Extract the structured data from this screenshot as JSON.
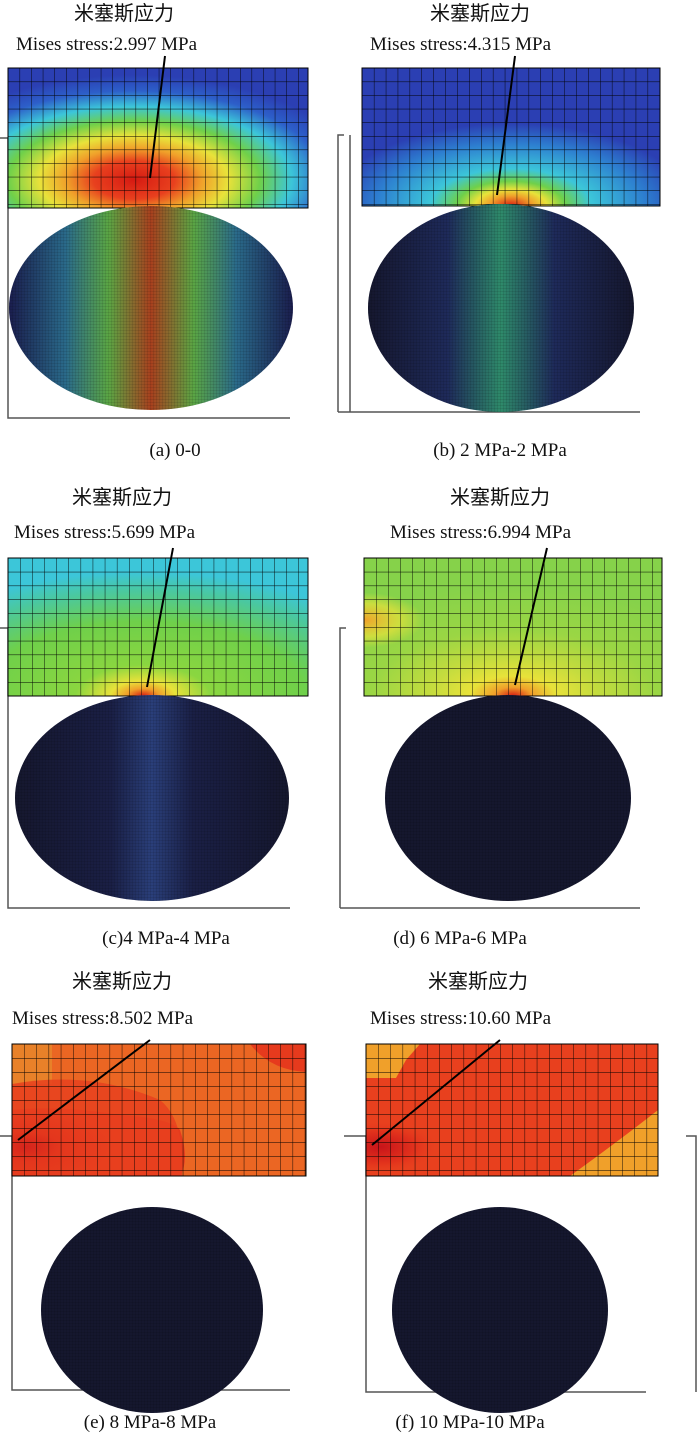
{
  "panels": [
    {
      "id": "a",
      "title_cn": "米塞斯应力",
      "title_en": "Mises stress:2.997 MPa",
      "caption": "(a) 0-0"
    },
    {
      "id": "b",
      "title_cn": "米塞斯应力",
      "title_en": "Mises stress:4.315 MPa",
      "caption": "(b) 2 MPa-2 MPa"
    },
    {
      "id": "c",
      "title_cn": "米塞斯应力",
      "title_en": "Mises stress:5.699 MPa",
      "caption": "(c)4 MPa-4 MPa"
    },
    {
      "id": "d",
      "title_cn": "米塞斯应力",
      "title_en": "Mises stress:6.994 MPa",
      "caption": "(d) 6 MPa-6 MPa"
    },
    {
      "id": "e",
      "title_cn": "米塞斯应力",
      "title_en": "Mises stress:8.502 MPa",
      "caption": "(e) 8 MPa-8 MPa"
    },
    {
      "id": "f",
      "title_cn": "米塞斯应力",
      "title_en": "Mises stress:10.60 MPa",
      "caption": "(f) 10 MPa-10 MPa"
    }
  ],
  "colors": {
    "contour_blue": "#2b3fb3",
    "contour_cyan": "#3cc6d9",
    "contour_green": "#5fcf4a",
    "contour_yellow": "#e8e23a",
    "contour_orange": "#f0a02a",
    "contour_red": "#e2321c",
    "mesh_dark": "#15172e",
    "grid_line": "#000000"
  }
}
